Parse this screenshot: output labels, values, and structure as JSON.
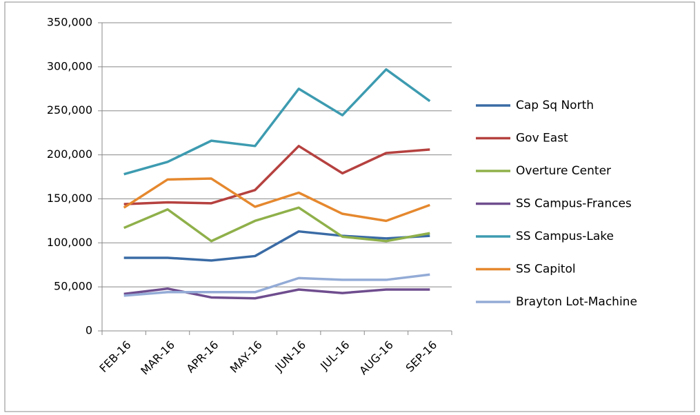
{
  "chart_data": {
    "type": "line",
    "categories": [
      "FEB-16",
      "MAR-16",
      "APR-16",
      "MAY-16",
      "JUN-16",
      "JUL-16",
      "AUG-16",
      "SEP-16"
    ],
    "series": [
      {
        "name": "Cap Sq North",
        "color": "#3a6ba5",
        "values": [
          83000,
          83000,
          80000,
          85000,
          113000,
          108000,
          105000,
          108000
        ]
      },
      {
        "name": "Gov East",
        "color": "#b5413f",
        "values": [
          144000,
          146000,
          145000,
          160000,
          210000,
          179000,
          202000,
          206000
        ]
      },
      {
        "name": "Overture Center",
        "color": "#8fb04a",
        "values": [
          117000,
          138000,
          102000,
          125000,
          140000,
          107000,
          102000,
          111000
        ]
      },
      {
        "name": "SS Campus-Frances",
        "color": "#6f4d8e",
        "values": [
          42000,
          48000,
          38000,
          37000,
          47000,
          43000,
          47000,
          47000
        ]
      },
      {
        "name": "SS Campus-Lake",
        "color": "#3d9bb0",
        "values": [
          178000,
          192000,
          216000,
          210000,
          275000,
          245000,
          297000,
          261000
        ]
      },
      {
        "name": "SS Capitol",
        "color": "#e5882e",
        "values": [
          140000,
          172000,
          173000,
          141000,
          157000,
          133000,
          125000,
          143000
        ]
      },
      {
        "name": "Brayton Lot-Machine",
        "color": "#93abd6",
        "values": [
          40000,
          44000,
          44000,
          44000,
          60000,
          58000,
          58000,
          64000
        ]
      }
    ],
    "ylim": [
      0,
      350000
    ],
    "yticks": [
      0,
      {
        "value": 50000,
        "label": "50,000"
      },
      {
        "value": 100000,
        "label": "100,000"
      },
      {
        "value": 150000,
        "label": "150,000"
      },
      {
        "value": 200000,
        "label": "200,000"
      },
      {
        "value": 250000,
        "label": "250,000"
      },
      {
        "value": 300000,
        "label": "300,000"
      },
      {
        "value": 350000,
        "label": "350,000"
      }
    ],
    "grid": true,
    "legend": "right"
  }
}
